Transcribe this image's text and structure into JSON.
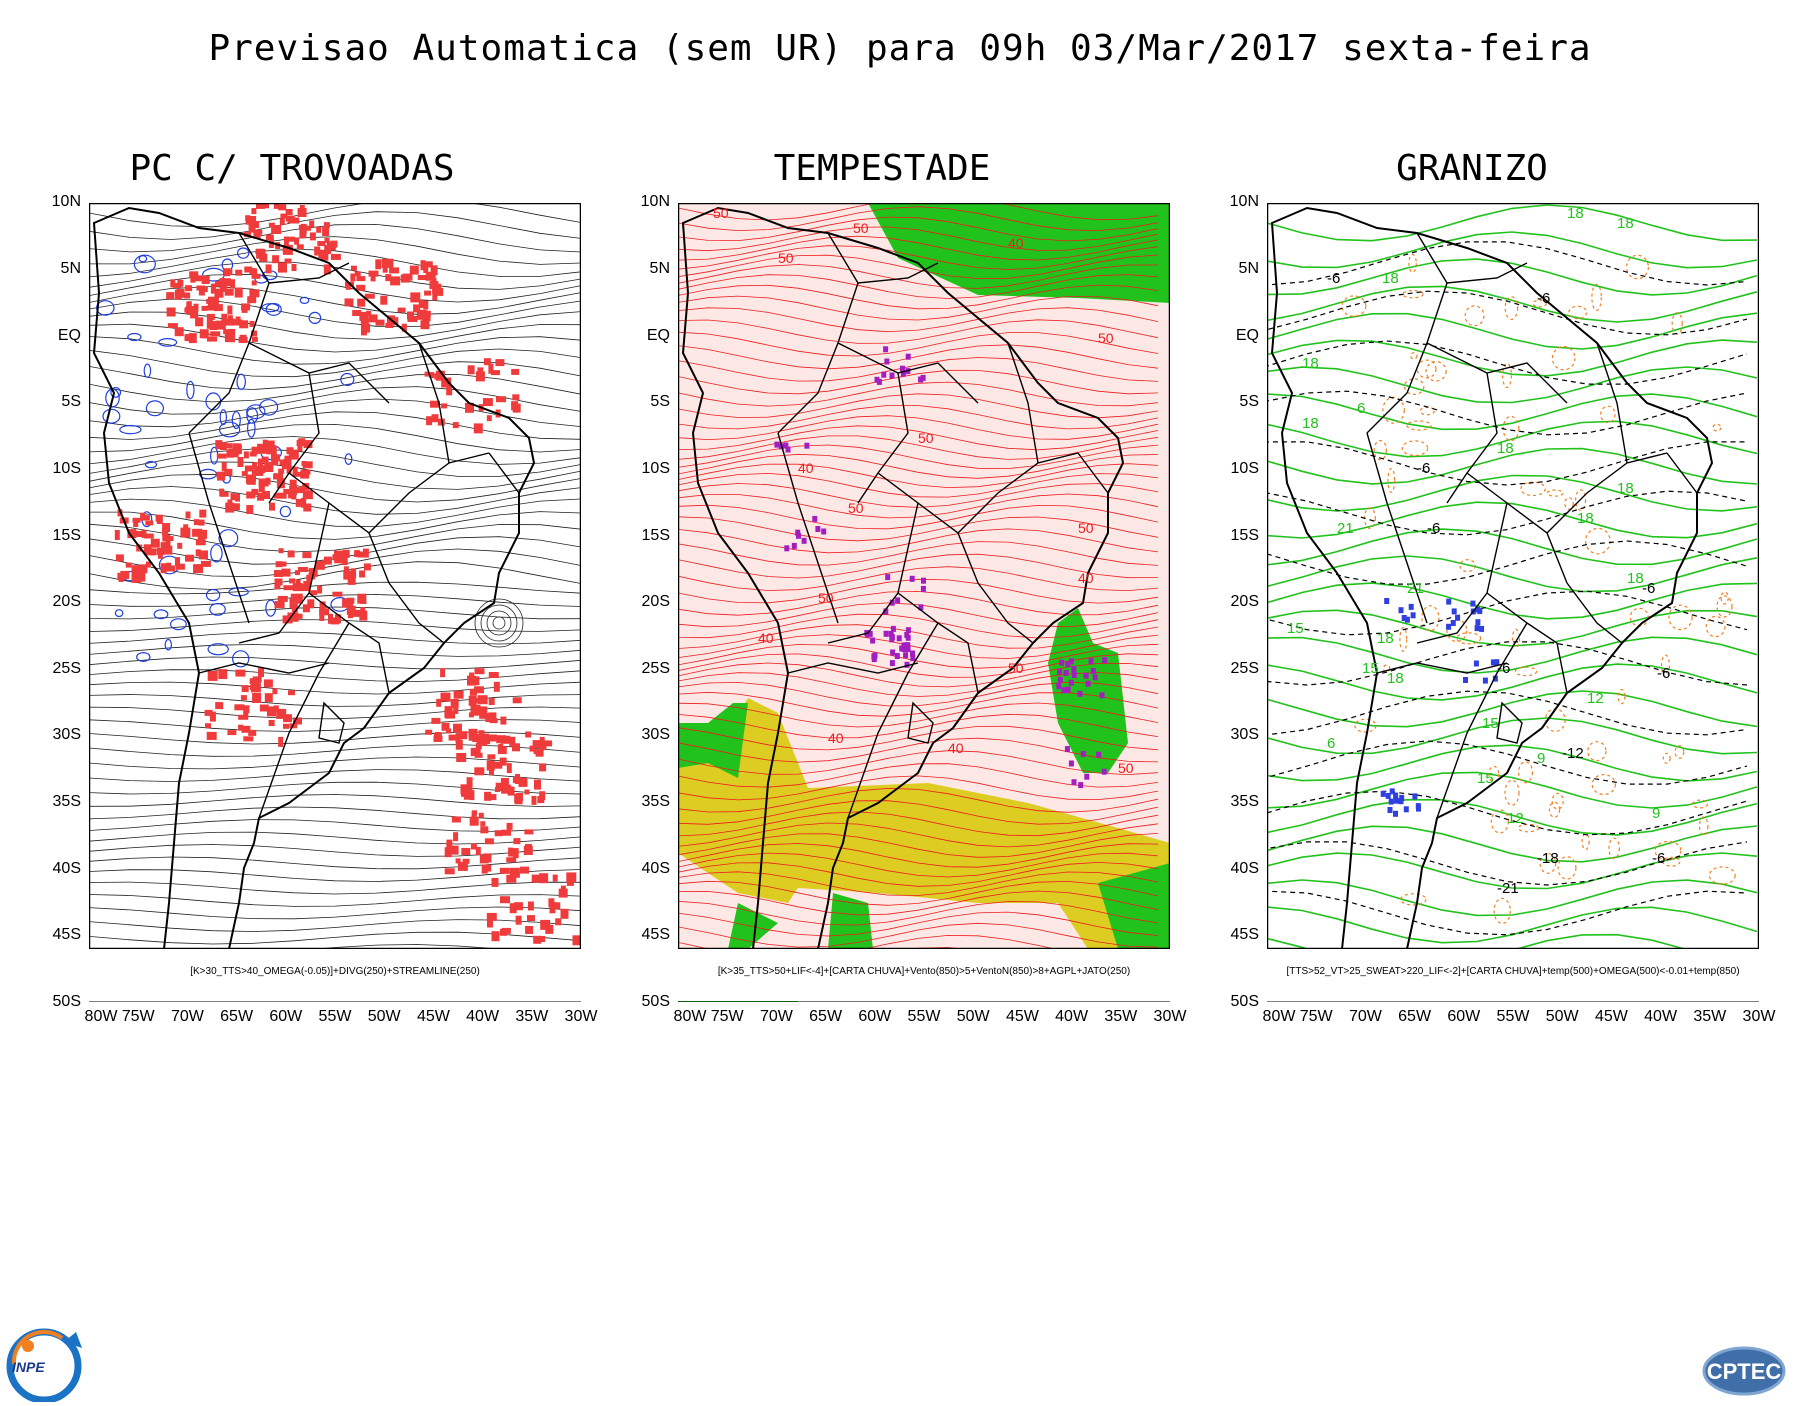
{
  "title": "Previsao Automatica (sem UR) para 09h 03/Mar/2017 sexta-feira",
  "lat_labels": [
    "10N",
    "5N",
    "EQ",
    "5S",
    "10S",
    "15S",
    "20S",
    "25S",
    "30S",
    "35S",
    "40S",
    "45S",
    "50S"
  ],
  "lon_labels": [
    "80W",
    "75W",
    "70W",
    "65W",
    "60W",
    "55W",
    "50W",
    "45W",
    "40W",
    "35W",
    "30W"
  ],
  "panels": [
    {
      "title": "PC C/ TROVOADAS",
      "caption": "[K>30_TTS>40_OMEGA(-0.05)]+DIVG(250)+STREAMLINE(250)"
    },
    {
      "title": "TEMPESTADE",
      "caption": "[K>35_TTS>50+LIF<-4]+[CARTA CHUVA]+Vento(850)>5+VentoN(850)>8+AGPL+JATO(250)",
      "contour_labels": [
        "50",
        "50",
        "50",
        "40",
        "50",
        "50",
        "40",
        "50",
        "50",
        "40",
        "40",
        "50",
        "40",
        "50",
        "40",
        "50"
      ]
    },
    {
      "title": "GRANIZO",
      "caption": "[TTS>52_VT>25_SWEAT>220_LIF<-2]+[CARTA CHUVA]+temp(500)+OMEGA(500)<-0.01+temp(850)",
      "contour_labels": [
        "18",
        "18",
        "-6",
        "18",
        "-6",
        "18",
        "6",
        "18",
        "18",
        "-6",
        "18",
        "21",
        "18",
        "-6",
        "18",
        "21",
        "18",
        "-6",
        "15",
        "18",
        "-6",
        "-6",
        "15",
        "12",
        "15",
        "-12",
        "9",
        "15",
        "-6",
        "-18",
        "-21",
        "6",
        "12",
        "9"
      ]
    }
  ],
  "logos": {
    "left": "INPE",
    "right": "CPTEC"
  },
  "colors": {
    "thunder": "#ef3b3b",
    "divergence": "#1f3fe0",
    "contour_red": "#ee1c1c",
    "rain_green": "#22c21c",
    "jet_yellow": "#ddcc22",
    "storm_purple": "#a21ec0",
    "temp_green": "#22c21c",
    "omega_orange": "#f08020"
  }
}
